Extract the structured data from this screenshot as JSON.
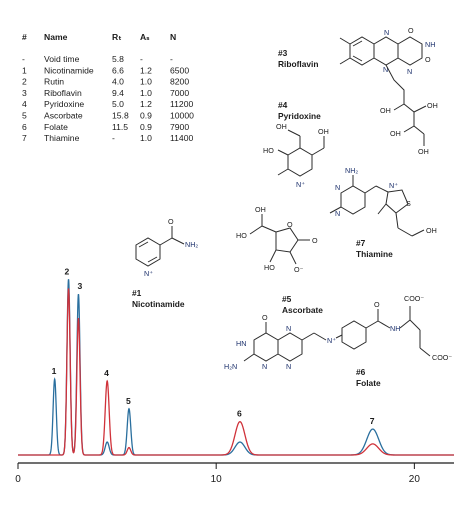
{
  "table": {
    "headers": [
      "#",
      "Name",
      "Rₜ",
      "Aₛ",
      "N"
    ],
    "rows": [
      [
        "-",
        "Void time",
        "5.8",
        "-",
        "-"
      ],
      [
        "1",
        "Nicotinamide",
        "6.6",
        "1.2",
        "6500"
      ],
      [
        "2",
        "Rutin",
        "4.0",
        "1.0",
        "8200"
      ],
      [
        "3",
        "Riboflavin",
        "9.4",
        "1.0",
        "7000"
      ],
      [
        "4",
        "Pyridoxine",
        "5.0",
        "1.2",
        "11200"
      ],
      [
        "5",
        "Ascorbate",
        "15.8",
        "0.9",
        "10000"
      ],
      [
        "6",
        "Folate",
        "11.5",
        "0.9",
        "7900"
      ],
      [
        "7",
        "Thiamine",
        "-",
        "1.0",
        "11400"
      ]
    ]
  },
  "compounds": [
    {
      "id": "#3",
      "name": "Riboflavin"
    },
    {
      "id": "#4",
      "name": "Pyridoxine"
    },
    {
      "id": "#7",
      "name": "Thiamine"
    },
    {
      "id": "#1",
      "name": "Nicotinamide"
    },
    {
      "id": "#5",
      "name": "Ascorbate"
    },
    {
      "id": "#6",
      "name": "Folate"
    }
  ],
  "chart_data": {
    "type": "line",
    "title": "",
    "xlabel": "",
    "ylabel": "",
    "xlim": [
      0,
      22
    ],
    "ylim": [
      0,
      1.0
    ],
    "x_ticks": [
      0,
      10,
      20
    ],
    "grid": false,
    "series": [
      {
        "color": "#2a6f9e",
        "peaks": [
          {
            "label": "1",
            "x": 1.85,
            "height": 0.41,
            "width": 0.08
          },
          {
            "label": "2",
            "x": 2.55,
            "height": 0.95,
            "width": 0.08
          },
          {
            "label": "3",
            "x": 3.05,
            "height": 0.87,
            "width": 0.08
          },
          {
            "label": "4",
            "x": 4.5,
            "height": 0.07,
            "width": 0.1
          },
          {
            "label": "5",
            "x": 5.6,
            "height": 0.25,
            "width": 0.09
          },
          {
            "label": "6",
            "x": 11.2,
            "height": 0.07,
            "width": 0.25
          },
          {
            "label": "7",
            "x": 17.9,
            "height": 0.14,
            "width": 0.3
          }
        ]
      },
      {
        "color": "#d0323a",
        "peaks": [
          {
            "label": "2",
            "x": 2.55,
            "height": 0.9,
            "width": 0.08
          },
          {
            "label": "3",
            "x": 3.05,
            "height": 0.74,
            "width": 0.08
          },
          {
            "label": "4",
            "x": 4.5,
            "height": 0.4,
            "width": 0.1
          },
          {
            "label": "5",
            "x": 5.6,
            "height": 0.04,
            "width": 0.09
          },
          {
            "label": "6",
            "x": 11.2,
            "height": 0.18,
            "width": 0.25
          },
          {
            "label": "7",
            "x": 17.9,
            "height": 0.06,
            "width": 0.3
          }
        ]
      }
    ]
  }
}
